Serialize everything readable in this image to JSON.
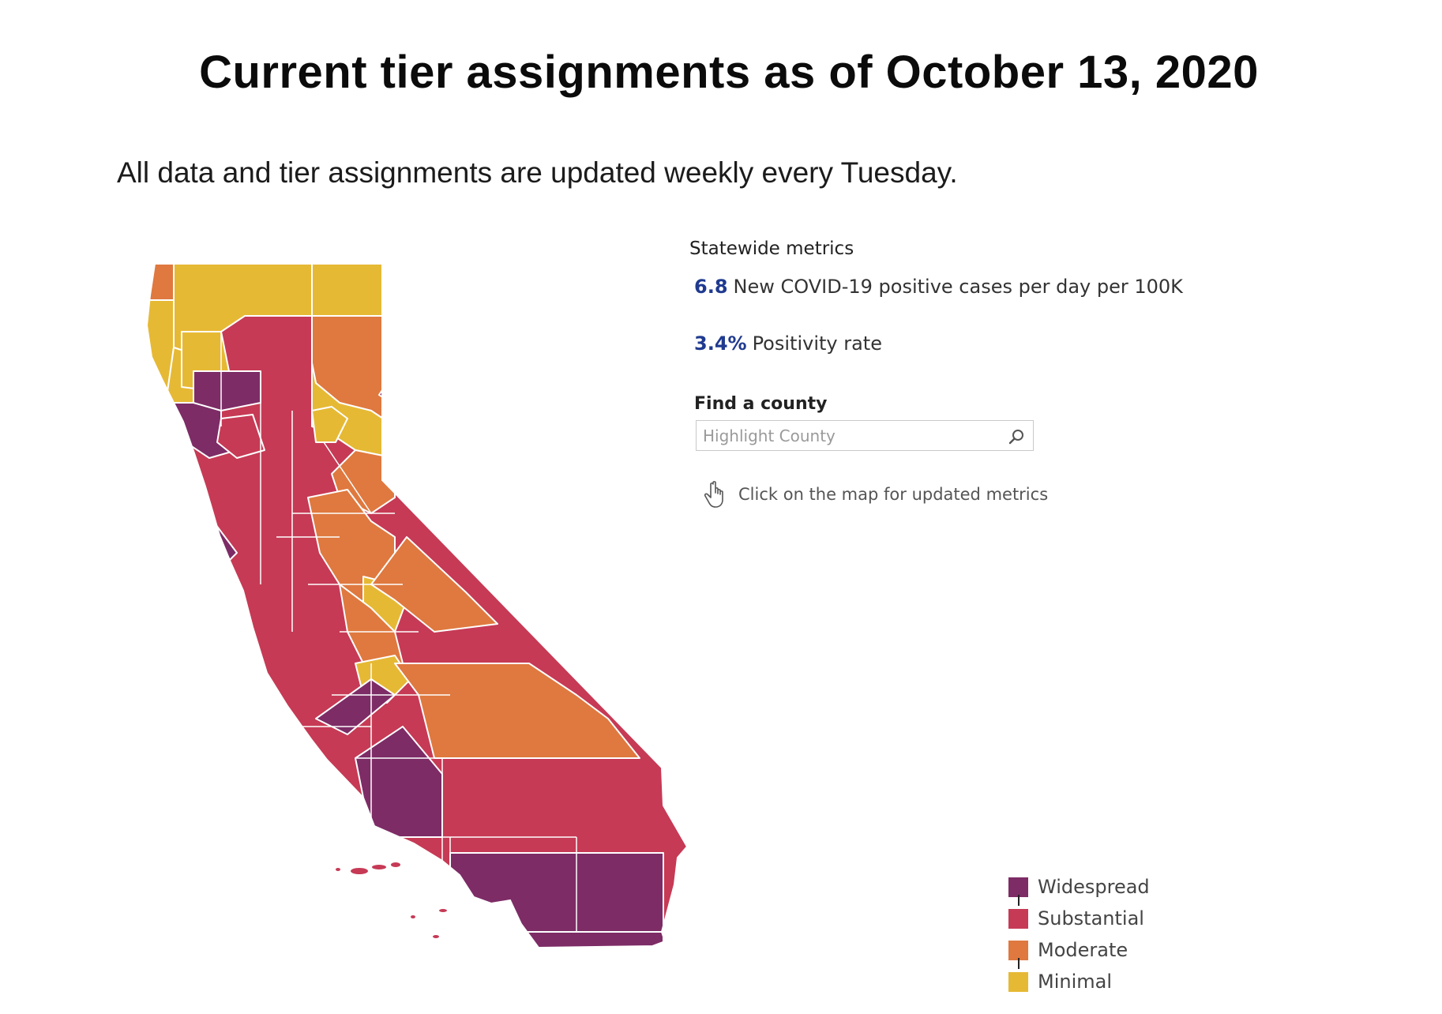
{
  "title": "Current tier assignments as of October 13, 2020",
  "subtitle": "All data and tier assignments are updated weekly every Tuesday.",
  "metrics": {
    "heading": "Statewide metrics",
    "cases_value": "6.8",
    "cases_label": "New COVID-19 positive cases per day per 100K",
    "positivity_value": "3.4%",
    "positivity_label": "Positivity rate"
  },
  "search": {
    "label": "Find a county",
    "placeholder": "Highlight County"
  },
  "hint": {
    "text": "Click on the map for updated metrics",
    "icon": "pointing-hand-icon"
  },
  "legend": [
    {
      "label": "Widespread",
      "color": "#7d2c66"
    },
    {
      "label": "Substantial",
      "color": "#c63a55"
    },
    {
      "label": "Moderate",
      "color": "#df793f"
    },
    {
      "label": "Minimal",
      "color": "#e6b935"
    }
  ],
  "colors": {
    "widespread": "#7d2c66",
    "substantial": "#c63a55",
    "moderate": "#df793f",
    "minimal": "#e6b935",
    "metric_value": "#1f3a8f"
  }
}
